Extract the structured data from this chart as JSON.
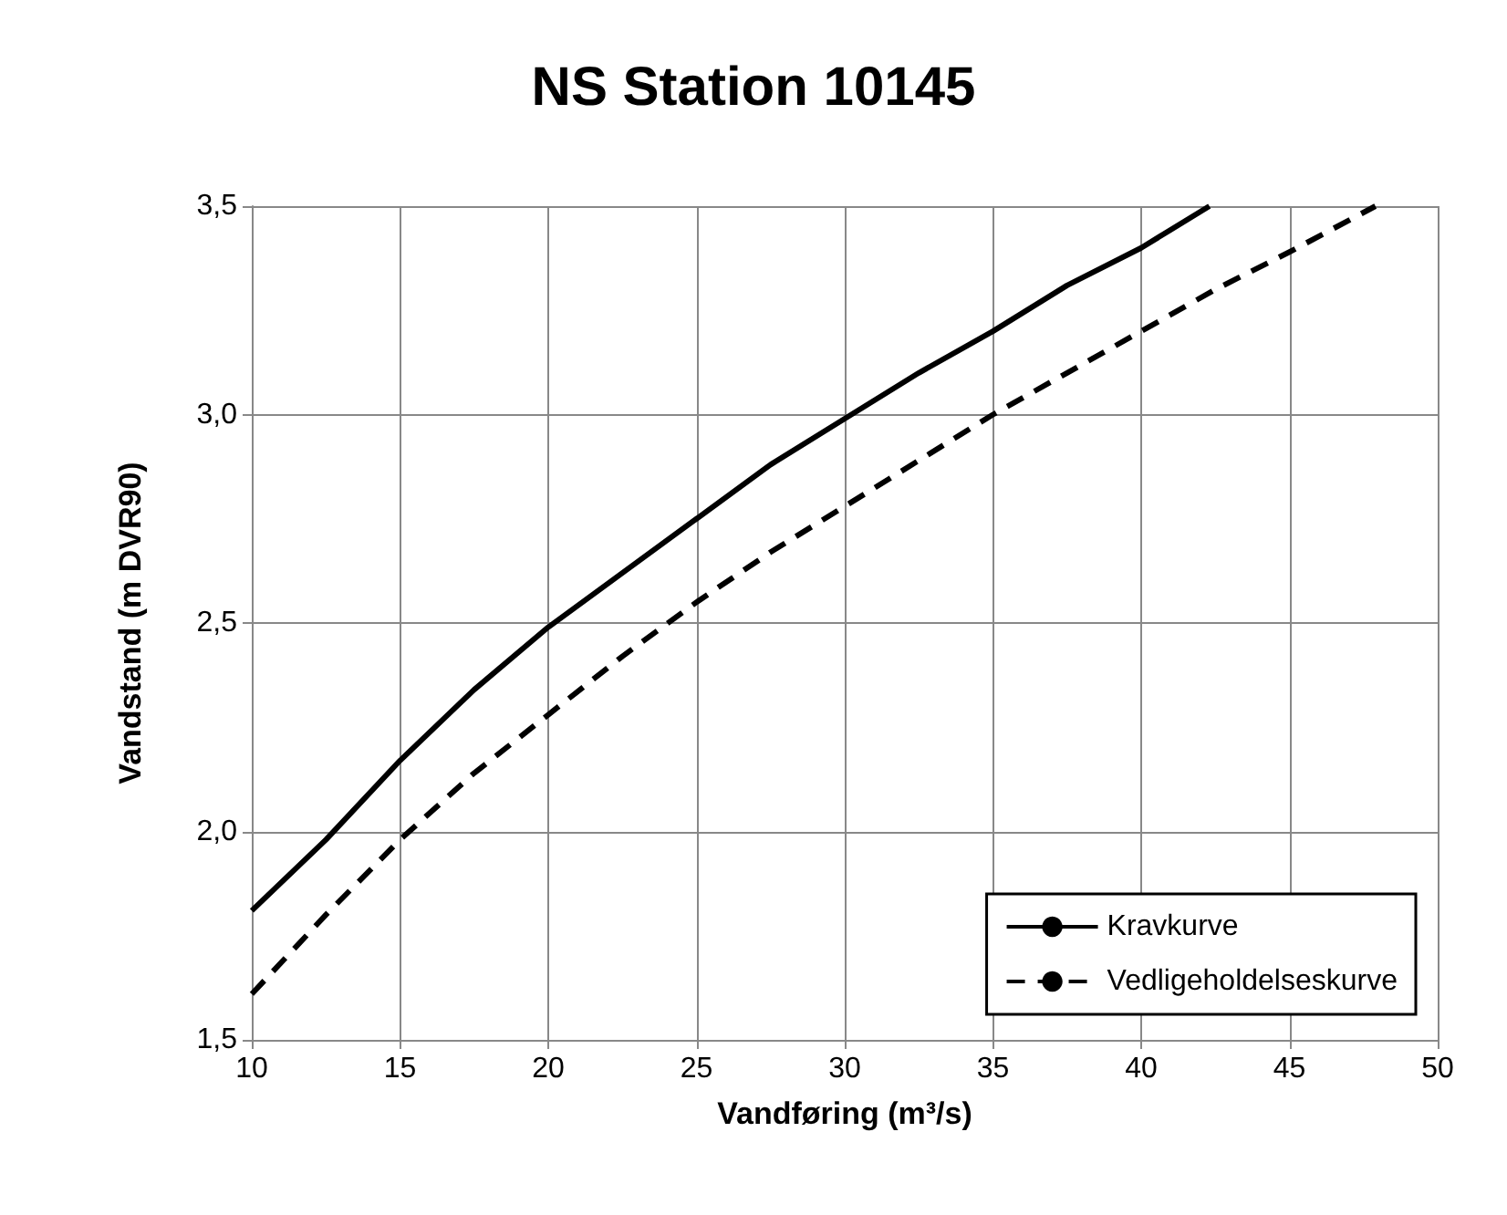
{
  "chart_data": {
    "type": "line",
    "title": "NS Station 10145",
    "xlabel": "Vandføring (m³/s)",
    "ylabel": "Vandstand (m DVR90)",
    "xlim": [
      10,
      50
    ],
    "xticks": [
      10,
      15,
      20,
      25,
      30,
      35,
      40,
      45,
      50
    ],
    "ylim": [
      1.5,
      3.5
    ],
    "yticks": [
      {
        "value": 1.5,
        "label": "1,5"
      },
      {
        "value": 2.0,
        "label": "2,0"
      },
      {
        "value": 2.5,
        "label": "2,5"
      },
      {
        "value": 3.0,
        "label": "3,0"
      },
      {
        "value": 3.5,
        "label": "3,5"
      }
    ],
    "grid": true,
    "legend": "bottom right",
    "marker": "none",
    "series": [
      {
        "name": "Kravkurve",
        "color": "#000000",
        "line_style": "solid",
        "x": [
          10,
          12.5,
          15,
          17.5,
          20,
          22.5,
          25,
          27.5,
          30,
          32.5,
          35,
          37.5,
          40,
          42.3
        ],
        "values": [
          1.81,
          1.98,
          2.17,
          2.34,
          2.49,
          2.62,
          2.75,
          2.88,
          2.99,
          3.1,
          3.2,
          3.31,
          3.4,
          3.5
        ]
      },
      {
        "name": "Vedligeholdelseskurve",
        "color": "#000000",
        "line_style": "dashed",
        "x": [
          10,
          12.5,
          15,
          17.5,
          20,
          22.5,
          25,
          27.5,
          30,
          32.5,
          35,
          37.5,
          40,
          42.5,
          45,
          47.9
        ],
        "values": [
          1.61,
          1.8,
          1.98,
          2.14,
          2.28,
          2.42,
          2.55,
          2.67,
          2.78,
          2.89,
          3.0,
          3.1,
          3.2,
          3.3,
          3.39,
          3.5
        ]
      }
    ]
  }
}
